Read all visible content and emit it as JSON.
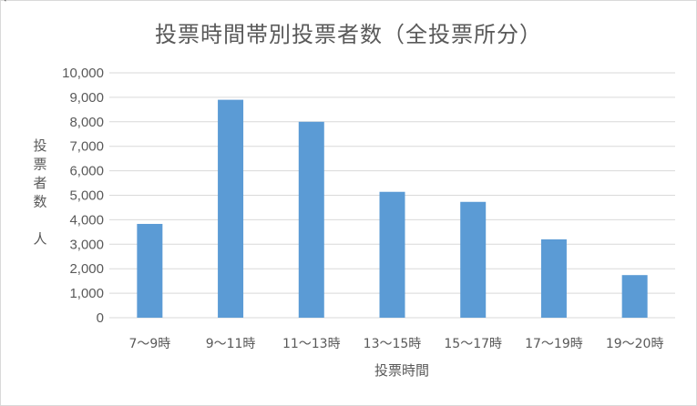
{
  "chart_data": {
    "type": "bar",
    "title": "投票時間帯別投票者数（全投票所分）",
    "xlabel": "投票時間",
    "ylabel": "投票者数（人）",
    "categories": [
      "7～9時",
      "9～11時",
      "11～13時",
      "13～15時",
      "15～17時",
      "17～19時",
      "19～20時"
    ],
    "values": [
      3830,
      8900,
      8000,
      5140,
      4730,
      3200,
      1740
    ],
    "yticks": [
      "0",
      "1,000",
      "2,000",
      "3,000",
      "4,000",
      "5,000",
      "6,000",
      "7,000",
      "8,000",
      "9,000",
      "10,000"
    ],
    "ylim": [
      0,
      10000
    ],
    "grid": true,
    "legend": "none",
    "bar_color": "#5b9bd5",
    "grid_color": "#d9d9d9"
  }
}
